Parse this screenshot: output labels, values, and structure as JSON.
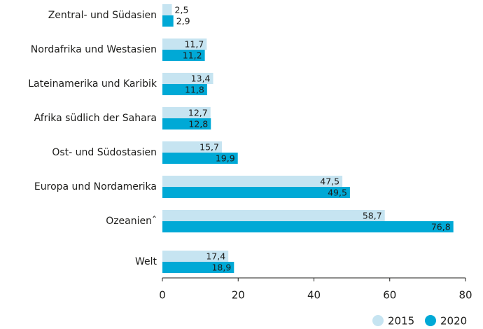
{
  "chart_data": {
    "type": "hbar",
    "categories": [
      "Zentral- und Südasien",
      "Nordafrika und Westasien",
      "Lateinamerika und Karibik",
      "Afrika südlich der Sahara",
      "Ost- und Südostasien",
      "Europa und Nordamerika",
      "Ozeanienˆ",
      "Welt"
    ],
    "series": [
      {
        "name": "2015",
        "color": "#c6e4f1",
        "values": [
          2.5,
          11.7,
          13.4,
          12.7,
          15.7,
          47.5,
          58.7,
          17.4
        ],
        "value_labels": [
          "2,5",
          "11,7",
          "13,4",
          "12,7",
          "15,7",
          "47,5",
          "58,7",
          "17,4"
        ]
      },
      {
        "name": "2020",
        "color": "#00a9d6",
        "values": [
          2.9,
          11.2,
          11.8,
          12.8,
          19.9,
          49.5,
          76.8,
          18.9
        ],
        "value_labels": [
          "2,9",
          "11,2",
          "11,8",
          "12,8",
          "19,9",
          "49,5",
          "76,8",
          "18,9"
        ]
      }
    ],
    "xlim": [
      0,
      80
    ],
    "xticks": [
      0,
      20,
      40,
      60,
      80
    ],
    "legend": "bottom-right"
  }
}
